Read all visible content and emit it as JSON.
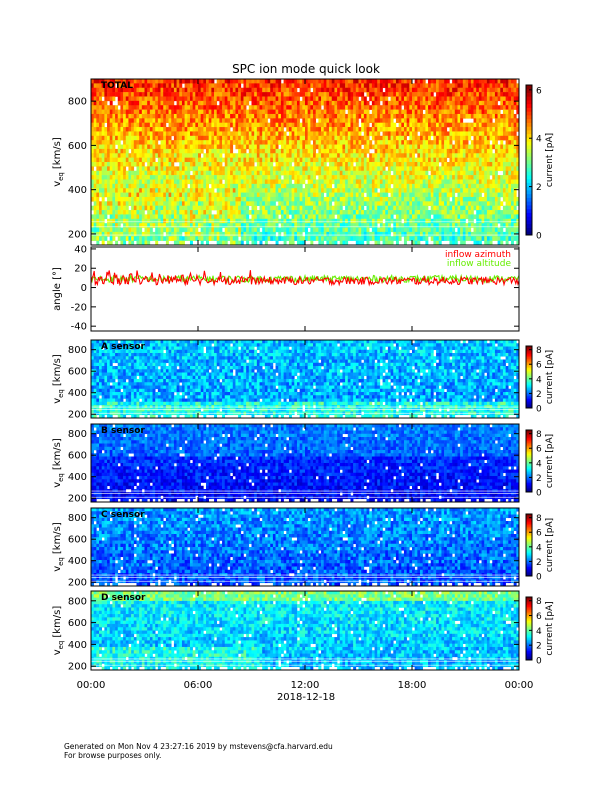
{
  "title": "SPC ion mode quick look",
  "date_label": "2018-12-18",
  "footer": {
    "line1": "Generated on Mon Nov  4 23:27:16 2019 by mstevens@cfa.harvard.edu",
    "line2": "For browse purposes only."
  },
  "colors": {
    "inflow_azimuth": "#ff0000",
    "inflow_altitude": "#66ee00"
  },
  "chart_data": [
    {
      "type": "heatmap",
      "panel_label": "TOTAL",
      "ylabel_main": "v",
      "ylabel_sub": "eq",
      "ylabel_unit": "[km/s]",
      "yticks": [
        "200",
        "400",
        "600",
        "800"
      ],
      "ytick_values": [
        200,
        400,
        600,
        800
      ],
      "ylim": [
        150,
        900
      ],
      "colorbar_label": "current [pA]",
      "colorbar_ticks": [
        "0",
        "2",
        "4",
        "6"
      ],
      "colorbar_tick_values": [
        0,
        2,
        4,
        6
      ],
      "clim": [
        0,
        6.2
      ]
    },
    {
      "type": "line",
      "ylabel": "angle [°]",
      "yticks": [
        "-40",
        "-20",
        "0",
        "20",
        "40"
      ],
      "ytick_values": [
        -40,
        -20,
        0,
        20,
        40
      ],
      "ylim": [
        -45,
        42
      ],
      "series": [
        {
          "name": "inflow azimuth",
          "typical_range": [
            2,
            22
          ]
        },
        {
          "name": "inflow altitude",
          "typical_range": [
            5,
            14
          ]
        }
      ]
    },
    {
      "type": "heatmap",
      "panel_label": "A sensor",
      "ylabel_main": "v",
      "ylabel_sub": "eq",
      "ylabel_unit": "[km/s]",
      "yticks": [
        "200",
        "400",
        "600",
        "800"
      ],
      "ytick_values": [
        200,
        400,
        600,
        800
      ],
      "ylim": [
        165,
        890
      ],
      "colorbar_label": "current [pA]",
      "colorbar_ticks": [
        "0",
        "2",
        "4",
        "6",
        "8"
      ],
      "colorbar_tick_values": [
        0,
        2,
        4,
        6,
        8
      ],
      "clim": [
        0,
        8.5
      ]
    },
    {
      "type": "heatmap",
      "panel_label": "B sensor",
      "ylabel_main": "v",
      "ylabel_sub": "eq",
      "ylabel_unit": "[km/s]",
      "yticks": [
        "200",
        "400",
        "600",
        "800"
      ],
      "ytick_values": [
        200,
        400,
        600,
        800
      ],
      "ylim": [
        165,
        890
      ],
      "colorbar_label": "current [pA]",
      "colorbar_ticks": [
        "0",
        "2",
        "4",
        "6",
        "8"
      ],
      "colorbar_tick_values": [
        0,
        2,
        4,
        6,
        8
      ],
      "clim": [
        0,
        8.5
      ]
    },
    {
      "type": "heatmap",
      "panel_label": "C sensor",
      "ylabel_main": "v",
      "ylabel_sub": "eq",
      "ylabel_unit": "[km/s]",
      "yticks": [
        "200",
        "400",
        "600",
        "800"
      ],
      "ytick_values": [
        200,
        400,
        600,
        800
      ],
      "ylim": [
        165,
        890
      ],
      "colorbar_label": "current [pA]",
      "colorbar_ticks": [
        "0",
        "2",
        "4",
        "6",
        "8"
      ],
      "colorbar_tick_values": [
        0,
        2,
        4,
        6,
        8
      ],
      "clim": [
        0,
        8.5
      ]
    },
    {
      "type": "heatmap",
      "panel_label": "D sensor",
      "ylabel_main": "v",
      "ylabel_sub": "eq",
      "ylabel_unit": "[km/s]",
      "yticks": [
        "200",
        "400",
        "600",
        "800"
      ],
      "ytick_values": [
        200,
        400,
        600,
        800
      ],
      "ylim": [
        165,
        890
      ],
      "colorbar_label": "current [pA]",
      "colorbar_ticks": [
        "0",
        "2",
        "4",
        "6",
        "8"
      ],
      "colorbar_tick_values": [
        0,
        2,
        4,
        6,
        8
      ],
      "clim": [
        0,
        8.5
      ]
    }
  ],
  "time_axis": {
    "ticks": [
      "00:00",
      "06:00",
      "12:00",
      "18:00",
      "00:00"
    ],
    "tick_hours": [
      0,
      6,
      12,
      18,
      24
    ]
  }
}
